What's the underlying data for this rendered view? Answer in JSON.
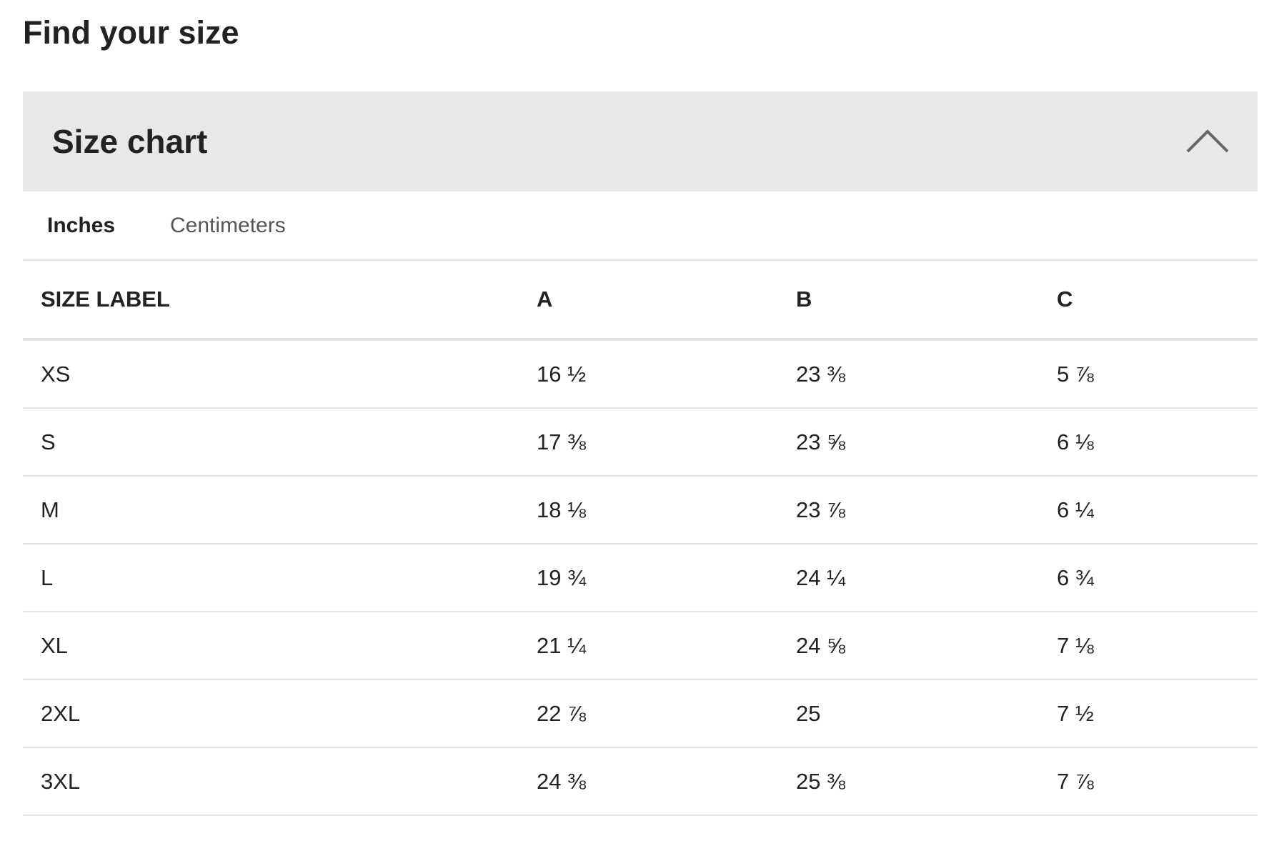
{
  "header": {
    "title": "Find your size"
  },
  "panel": {
    "title": "Size chart",
    "tabs": [
      "Inches",
      "Centimeters"
    ]
  },
  "table": {
    "headers": [
      "SIZE LABEL",
      "A",
      "B",
      "C"
    ],
    "rows": [
      [
        "XS",
        "16 ½",
        "23 ⅜",
        "5 ⅞"
      ],
      [
        "S",
        "17 ⅜",
        "23 ⅝",
        "6 ⅛"
      ],
      [
        "M",
        "18 ⅛",
        "23 ⅞",
        "6 ¼"
      ],
      [
        "L",
        "19 ¾",
        "24 ¼",
        "6 ¾"
      ],
      [
        "XL",
        "21 ¼",
        "24 ⅝",
        "7 ⅛"
      ],
      [
        "2XL",
        "22 ⅞",
        "25",
        "7 ½"
      ],
      [
        "3XL",
        "24 ⅜",
        "25 ⅜",
        "7 ⅞"
      ]
    ]
  }
}
